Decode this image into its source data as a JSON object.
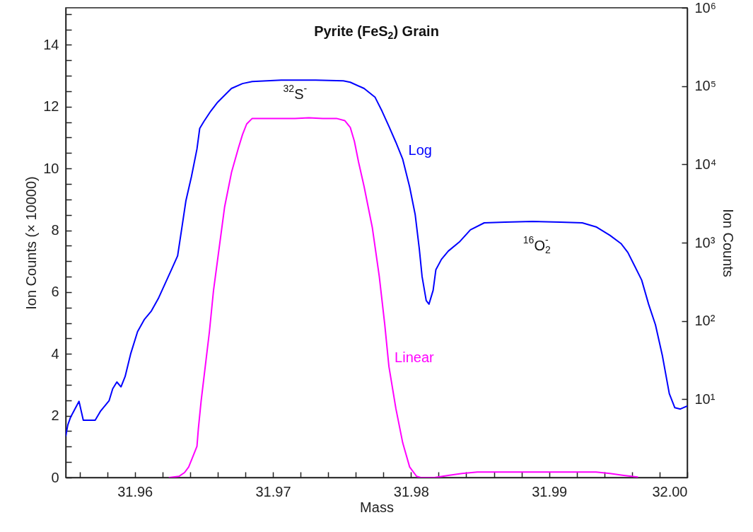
{
  "chart_data": {
    "type": "line",
    "title": "Pyrite (FeS$_{2}$) Grain",
    "xlabel": "Mass",
    "ylabel": "Ion Counts (× 10000)",
    "y2label": "Ion Counts",
    "xlim": [
      31.955,
      32.0
    ],
    "xticks": [
      {
        "value": 31.956,
        "label": null
      },
      {
        "value": 31.958,
        "label": null
      },
      31.96,
      {
        "value": 31.962,
        "label": null
      },
      {
        "value": 31.964,
        "label": null
      },
      {
        "value": 31.966,
        "label": null
      },
      {
        "value": 31.968,
        "label": null
      },
      31.97,
      {
        "value": 31.972,
        "label": null
      },
      {
        "value": 31.974,
        "label": null
      },
      {
        "value": 31.976,
        "label": null
      },
      {
        "value": 31.978,
        "label": null
      },
      31.98,
      {
        "value": 31.982,
        "label": null
      },
      {
        "value": 31.984,
        "label": null
      },
      {
        "value": 31.986,
        "label": null
      },
      {
        "value": 31.988,
        "label": null
      },
      31.99,
      {
        "value": 31.992,
        "label": null
      },
      {
        "value": 31.994,
        "label": null
      },
      {
        "value": 31.996,
        "label": null
      },
      {
        "value": 31.998,
        "label": null
      },
      {
        "value": 32.0,
        "label": "32.00"
      }
    ],
    "ylim": [
      0,
      15.2
    ],
    "yticks": [
      0,
      {
        "value": 0.5,
        "label": null
      },
      {
        "value": 1,
        "label": null
      },
      {
        "value": 1.5,
        "label": null
      },
      2,
      {
        "value": 2.5,
        "label": null
      },
      {
        "value": 3,
        "label": null
      },
      {
        "value": 3.5,
        "label": null
      },
      4,
      {
        "value": 4.5,
        "label": null
      },
      {
        "value": 5,
        "label": null
      },
      {
        "value": 5.5,
        "label": null
      },
      6,
      {
        "value": 6.5,
        "label": null
      },
      {
        "value": 7,
        "label": null
      },
      {
        "value": 7.5,
        "label": null
      },
      8,
      {
        "value": 8.5,
        "label": null
      },
      {
        "value": 9,
        "label": null
      },
      {
        "value": 9.5,
        "label": null
      },
      10,
      {
        "value": 10.5,
        "label": null
      },
      {
        "value": 11,
        "label": null
      },
      {
        "value": 11.5,
        "label": null
      },
      12,
      {
        "value": 12.5,
        "label": null
      },
      {
        "value": 13,
        "label": null
      },
      {
        "value": 13.5,
        "label": null
      },
      14,
      {
        "value": 14.5,
        "label": null
      },
      {
        "value": 15,
        "label": null
      }
    ],
    "y2lim": [
      1,
      1000000
    ],
    "y2ticks": [
      {
        "value": 10,
        "label": "10¹"
      },
      {
        "value": 100,
        "label": "10²"
      },
      {
        "value": 1000,
        "label": "10³"
      },
      {
        "value": 10000,
        "label": "10⁴"
      },
      {
        "value": 100000,
        "label": "10⁵"
      },
      {
        "value": 1000000,
        "label": "10⁶"
      }
    ],
    "log": "y2",
    "grid": false,
    "marker": "none",
    "line_style": "solid",
    "series": [
      {
        "name": "Linear",
        "color": "#ff00ff",
        "x": [
          31.9625,
          31.9632,
          31.9636,
          31.9639,
          31.9642,
          31.9645,
          31.9646,
          31.9648,
          31.9651,
          31.9654,
          31.9657,
          31.9661,
          31.9665,
          31.967,
          31.9675,
          31.9678,
          31.9681,
          31.9685,
          31.9696,
          31.9706,
          31.9716,
          31.9726,
          31.9736,
          31.9746,
          31.9752,
          31.9756,
          31.9759,
          31.9762,
          31.9766,
          31.9772,
          31.9777,
          31.9781,
          31.9784,
          31.9789,
          31.9794,
          31.9799,
          31.9804,
          31.9807,
          31.9817,
          31.9827,
          31.9837,
          31.9848,
          31.9858,
          31.9898,
          31.9934,
          31.9944,
          31.9954,
          31.9964
        ],
        "values": [
          0,
          0.04,
          0.16,
          0.34,
          0.67,
          1.01,
          1.57,
          2.47,
          3.59,
          4.71,
          6.06,
          7.4,
          8.75,
          9.87,
          10.66,
          11.1,
          11.44,
          11.62,
          11.62,
          11.62,
          11.62,
          11.64,
          11.62,
          11.62,
          11.55,
          11.33,
          10.88,
          10.21,
          9.42,
          8.08,
          6.51,
          4.94,
          3.59,
          2.24,
          1.12,
          0.34,
          0.04,
          0,
          0,
          0.07,
          0.13,
          0.18,
          0.18,
          0.18,
          0.18,
          0.13,
          0.07,
          0.02
        ]
      },
      {
        "name": "Log",
        "color": "#0000ff",
        "axis": "y2",
        "x": [
          31.955,
          31.95515,
          31.95535,
          31.95596,
          31.95627,
          31.95713,
          31.95753,
          31.95814,
          31.9584,
          31.9587,
          31.959,
          31.9593,
          31.9597,
          31.9602,
          31.9607,
          31.9612,
          31.9617,
          31.9622,
          31.9627,
          31.9631,
          31.9634,
          31.9637,
          31.9641,
          31.9645,
          31.9647,
          31.965,
          31.9655,
          31.966,
          31.9665,
          31.967,
          31.9678,
          31.9685,
          31.9706,
          31.9731,
          31.9751,
          31.9756,
          31.9766,
          31.9774,
          31.9779,
          31.9784,
          31.9789,
          31.9794,
          31.9799,
          31.9803,
          31.9806,
          31.9808,
          31.9811,
          31.9813,
          31.9816,
          31.9818,
          31.9822,
          31.9827,
          31.9835,
          31.9843,
          31.9853,
          31.9868,
          31.9888,
          31.9908,
          31.9924,
          31.9934,
          31.9944,
          31.9952,
          31.9957,
          31.9962,
          31.9967,
          31.9972,
          31.9977,
          31.9982,
          31.9987,
          31.9991,
          31.9995,
          32.0
        ],
        "values": [
          3.4,
          4.7,
          5.9,
          9.4,
          5.4,
          5.4,
          7.1,
          9.6,
          13.6,
          16.6,
          14.4,
          19.5,
          38,
          73,
          105,
          134,
          193,
          301,
          471,
          678,
          1520,
          3430,
          6970,
          15700,
          28800,
          35300,
          47900,
          62200,
          76200,
          93300,
          107600,
          114300,
          119000,
          119000,
          116700,
          112000,
          93300,
          71800,
          47900,
          30600,
          19200,
          11600,
          5140,
          2290,
          830,
          369,
          182,
          164,
          246,
          452,
          612,
          781,
          1020,
          1460,
          1790,
          1830,
          1870,
          1830,
          1790,
          1590,
          1240,
          975,
          750,
          500,
          333,
          164,
          89,
          36,
          11.8,
          7.8,
          7.5,
          8.2
        ]
      }
    ],
    "annotations": [
      "$^{32}$S$^{-}$",
      "$^{16}$O$_{2}$$^{-}$"
    ]
  }
}
